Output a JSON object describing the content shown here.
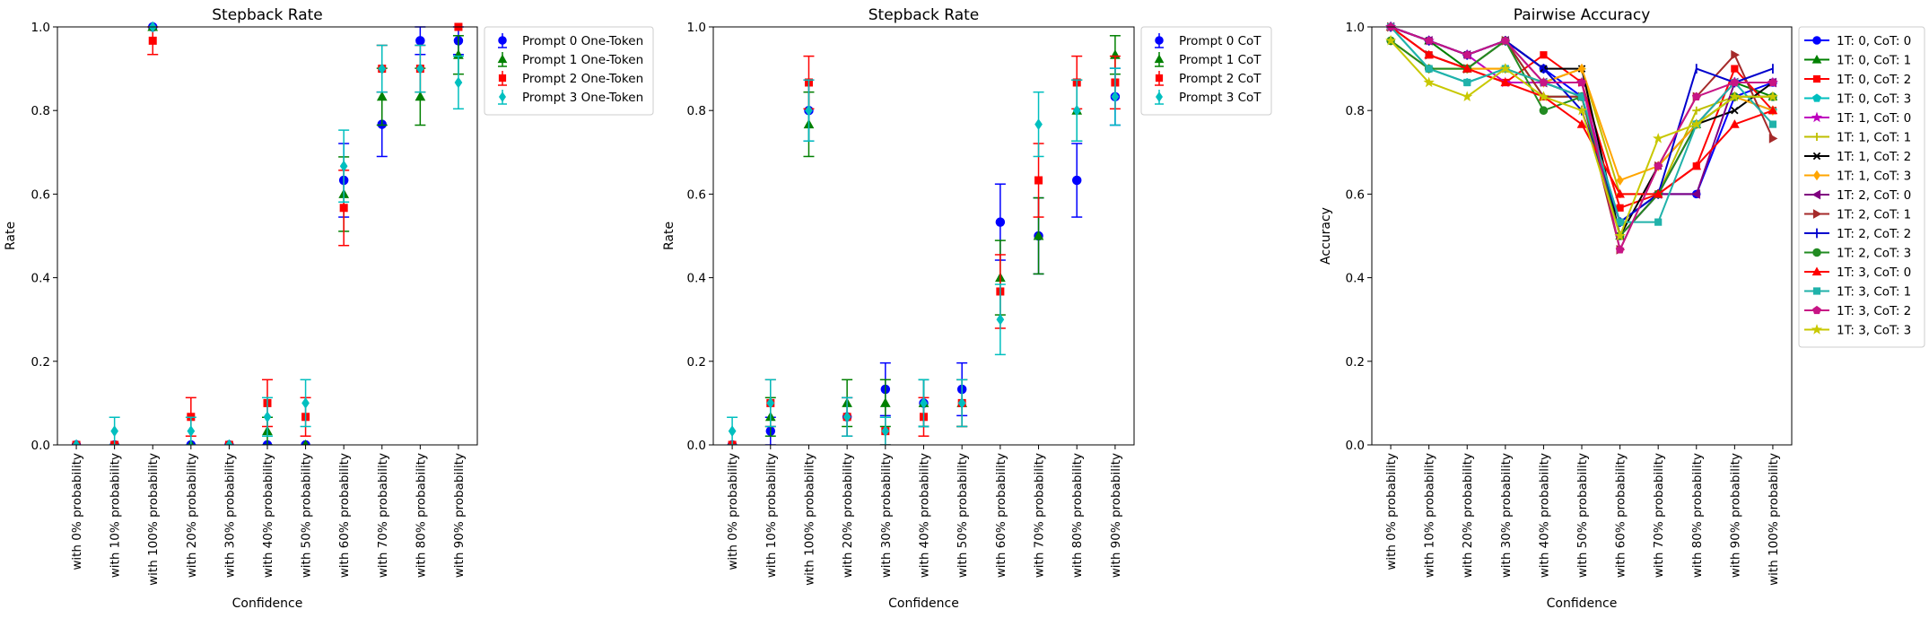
{
  "chart_data": [
    {
      "type": "scatter",
      "title": "Stepback Rate",
      "xlabel": "Confidence",
      "ylabel": "Rate",
      "ylim": [
        0,
        1
      ],
      "yticks": [
        "0.0",
        "0.2",
        "0.4",
        "0.6",
        "0.8",
        "1.0"
      ],
      "categories": [
        "with 0% probability",
        "with 10% probability",
        "with 100% probability",
        "with 20% probability",
        "with 30% probability",
        "with 40% probability",
        "with 50% probability",
        "with 60% probability",
        "with 70% probability",
        "with 80% probability",
        "with 90% probability"
      ],
      "error_bars": true,
      "legend_position": "outside-right",
      "series": [
        {
          "name": "Prompt 0 One-Token",
          "color": "#0000ff",
          "marker": "circle",
          "values": [
            0.0,
            0.0,
            1.0,
            0.0,
            0.0,
            0.0,
            0.0,
            0.633,
            0.767,
            0.967,
            0.967
          ],
          "errors": [
            0.0,
            0.0,
            0.0,
            0.0,
            0.0,
            0.0,
            0.0,
            0.088,
            0.077,
            0.033,
            0.033
          ]
        },
        {
          "name": "Prompt 1 One-Token",
          "color": "#008000",
          "marker": "triangle",
          "values": [
            0.0,
            0.0,
            1.0,
            0.0,
            0.0,
            0.033,
            0.0,
            0.6,
            0.833,
            0.833,
            0.933
          ],
          "errors": [
            0.0,
            0.0,
            0.0,
            0.0,
            0.0,
            0.033,
            0.0,
            0.089,
            0.068,
            0.068,
            0.046
          ]
        },
        {
          "name": "Prompt 2 One-Token",
          "color": "#ff0000",
          "marker": "square",
          "values": [
            0.0,
            0.0,
            0.967,
            0.067,
            0.0,
            0.1,
            0.067,
            0.567,
            0.9,
            0.9,
            1.0
          ],
          "errors": [
            0.0,
            0.0,
            0.033,
            0.046,
            0.0,
            0.056,
            0.046,
            0.09,
            0.056,
            0.056,
            0.0
          ]
        },
        {
          "name": "Prompt 3 One-Token",
          "color": "#00bfbf",
          "marker": "diamond",
          "values": [
            0.0,
            0.033,
            1.0,
            0.033,
            0.0,
            0.067,
            0.1,
            0.667,
            0.9,
            0.9,
            0.867
          ],
          "errors": [
            0.0,
            0.033,
            0.0,
            0.033,
            0.0,
            0.046,
            0.056,
            0.086,
            0.056,
            0.056,
            0.063
          ]
        }
      ]
    },
    {
      "type": "scatter",
      "title": "Stepback Rate",
      "xlabel": "Confidence",
      "ylabel": "Rate",
      "ylim": [
        0,
        1
      ],
      "yticks": [
        "0.0",
        "0.2",
        "0.4",
        "0.6",
        "0.8",
        "1.0"
      ],
      "categories": [
        "with 0% probability",
        "with 10% probability",
        "with 100% probability",
        "with 20% probability",
        "with 30% probability",
        "with 40% probability",
        "with 50% probability",
        "with 60% probability",
        "with 70% probability",
        "with 80% probability",
        "with 90% probability"
      ],
      "error_bars": true,
      "legend_position": "outside-right",
      "series": [
        {
          "name": "Prompt 0 CoT",
          "color": "#0000ff",
          "marker": "circle",
          "values": [
            0.0,
            0.033,
            0.8,
            0.067,
            0.133,
            0.1,
            0.133,
            0.533,
            0.5,
            0.633,
            0.833
          ],
          "errors": [
            0.0,
            0.033,
            0.073,
            0.046,
            0.063,
            0.056,
            0.063,
            0.091,
            0.091,
            0.088,
            0.068
          ]
        },
        {
          "name": "Prompt 1 CoT",
          "color": "#008000",
          "marker": "triangle",
          "values": [
            0.0,
            0.067,
            0.767,
            0.1,
            0.1,
            0.1,
            0.1,
            0.4,
            0.5,
            0.8,
            0.933
          ],
          "errors": [
            0.0,
            0.046,
            0.077,
            0.056,
            0.056,
            0.056,
            0.056,
            0.089,
            0.091,
            0.073,
            0.046
          ]
        },
        {
          "name": "Prompt 2 CoT",
          "color": "#ff0000",
          "marker": "square",
          "values": [
            0.0,
            0.1,
            0.867,
            0.067,
            0.033,
            0.067,
            0.1,
            0.367,
            0.633,
            0.867,
            0.867
          ],
          "errors": [
            0.0,
            0.056,
            0.063,
            0.046,
            0.033,
            0.046,
            0.056,
            0.088,
            0.088,
            0.063,
            0.063
          ]
        },
        {
          "name": "Prompt 3 CoT",
          "color": "#00bfbf",
          "marker": "diamond",
          "values": [
            0.033,
            0.1,
            0.8,
            0.067,
            0.033,
            0.1,
            0.1,
            0.3,
            0.767,
            0.8,
            0.833
          ],
          "errors": [
            0.033,
            0.056,
            0.073,
            0.046,
            0.033,
            0.056,
            0.056,
            0.084,
            0.077,
            0.073,
            0.068
          ]
        }
      ]
    },
    {
      "type": "line",
      "title": "Pairwise Accuracy",
      "xlabel": "Confidence",
      "ylabel": "Accuracy",
      "ylim": [
        0,
        1
      ],
      "yticks": [
        "0.0",
        "0.2",
        "0.4",
        "0.6",
        "0.8",
        "1.0"
      ],
      "categories": [
        "with 0% probability",
        "with 10% probability",
        "with 20% probability",
        "with 30% probability",
        "with 40% probability",
        "with 50% probability",
        "with 60% probability",
        "with 70% probability",
        "with 80% probability",
        "with 90% probability",
        "with 100% probability"
      ],
      "legend_position": "outside-right",
      "series": [
        {
          "name": "1T: 0, CoT: 0",
          "color": "#0000ff",
          "marker": "circle",
          "values": [
            1.0,
            0.967,
            0.933,
            0.967,
            0.9,
            0.833,
            0.533,
            0.6,
            0.6,
            0.833,
            0.867
          ]
        },
        {
          "name": "1T: 0, CoT: 1",
          "color": "#008000",
          "marker": "triangle",
          "values": [
            1.0,
            0.967,
            0.9,
            0.967,
            0.833,
            0.833,
            0.5,
            0.6,
            0.767,
            0.867,
            0.833
          ]
        },
        {
          "name": "1T: 0, CoT: 2",
          "color": "#ff0000",
          "marker": "square",
          "values": [
            1.0,
            0.933,
            0.9,
            0.867,
            0.933,
            0.867,
            0.567,
            0.6,
            0.667,
            0.9,
            0.8
          ]
        },
        {
          "name": "1T: 0, CoT: 3",
          "color": "#00bfbf",
          "marker": "pentagon",
          "values": [
            1.0,
            0.9,
            0.867,
            0.9,
            0.867,
            0.833,
            0.533,
            0.6,
            0.767,
            0.833,
            0.8
          ]
        },
        {
          "name": "1T: 1, CoT: 0",
          "color": "#bf00bf",
          "marker": "star",
          "values": [
            1.0,
            0.967,
            0.933,
            0.867,
            0.867,
            0.867,
            0.5,
            0.6,
            0.767,
            0.867,
            0.867
          ]
        },
        {
          "name": "1T: 1, CoT: 1",
          "color": "#bfbf00",
          "marker": "plus",
          "values": [
            0.967,
            0.9,
            0.9,
            0.9,
            0.867,
            0.9,
            0.6,
            0.6,
            0.8,
            0.833,
            0.833
          ]
        },
        {
          "name": "1T: 1, CoT: 2",
          "color": "#000000",
          "marker": "x",
          "values": [
            1.0,
            0.967,
            0.933,
            0.967,
            0.9,
            0.9,
            0.5,
            0.667,
            0.767,
            0.8,
            0.867
          ]
        },
        {
          "name": "1T: 1, CoT: 3",
          "color": "#ffa500",
          "marker": "diamond",
          "values": [
            0.967,
            0.9,
            0.9,
            0.9,
            0.867,
            0.9,
            0.633,
            0.667,
            0.767,
            0.833,
            0.8
          ]
        },
        {
          "name": "1T: 2, CoT: 0",
          "color": "#800080",
          "marker": "triangle-left",
          "values": [
            1.0,
            0.967,
            0.933,
            0.967,
            0.867,
            0.833,
            0.5,
            0.6,
            0.6,
            0.867,
            0.867
          ]
        },
        {
          "name": "1T: 2, CoT: 1",
          "color": "#a52a2a",
          "marker": "triangle-right",
          "values": [
            1.0,
            0.933,
            0.9,
            0.967,
            0.833,
            0.833,
            0.467,
            0.667,
            0.833,
            0.933,
            0.733
          ]
        },
        {
          "name": "1T: 2, CoT: 2",
          "color": "#0000cd",
          "marker": "vline",
          "values": [
            1.0,
            0.967,
            0.933,
            0.967,
            0.9,
            0.8,
            0.533,
            0.6,
            0.9,
            0.867,
            0.9
          ]
        },
        {
          "name": "1T: 2, CoT: 3",
          "color": "#228b22",
          "marker": "circle",
          "values": [
            0.967,
            0.9,
            0.9,
            0.967,
            0.8,
            0.833,
            0.5,
            0.6,
            0.767,
            0.833,
            0.833
          ]
        },
        {
          "name": "1T: 3, CoT: 0",
          "color": "#ff0000",
          "marker": "triangle",
          "values": [
            1.0,
            0.933,
            0.9,
            0.867,
            0.833,
            0.767,
            0.6,
            0.6,
            0.667,
            0.767,
            0.8
          ]
        },
        {
          "name": "1T: 3, CoT: 1",
          "color": "#20b2aa",
          "marker": "square",
          "values": [
            1.0,
            0.9,
            0.867,
            0.9,
            0.867,
            0.833,
            0.533,
            0.533,
            0.767,
            0.867,
            0.767
          ]
        },
        {
          "name": "1T: 3, CoT: 2",
          "color": "#c71585",
          "marker": "pentagon",
          "values": [
            1.0,
            0.967,
            0.933,
            0.967,
            0.867,
            0.867,
            0.467,
            0.667,
            0.833,
            0.867,
            0.867
          ]
        },
        {
          "name": "1T: 3, CoT: 3",
          "color": "#c8c800",
          "marker": "star",
          "values": [
            0.967,
            0.867,
            0.833,
            0.9,
            0.833,
            0.8,
            0.5,
            0.733,
            0.767,
            0.833,
            0.833
          ]
        }
      ]
    }
  ]
}
